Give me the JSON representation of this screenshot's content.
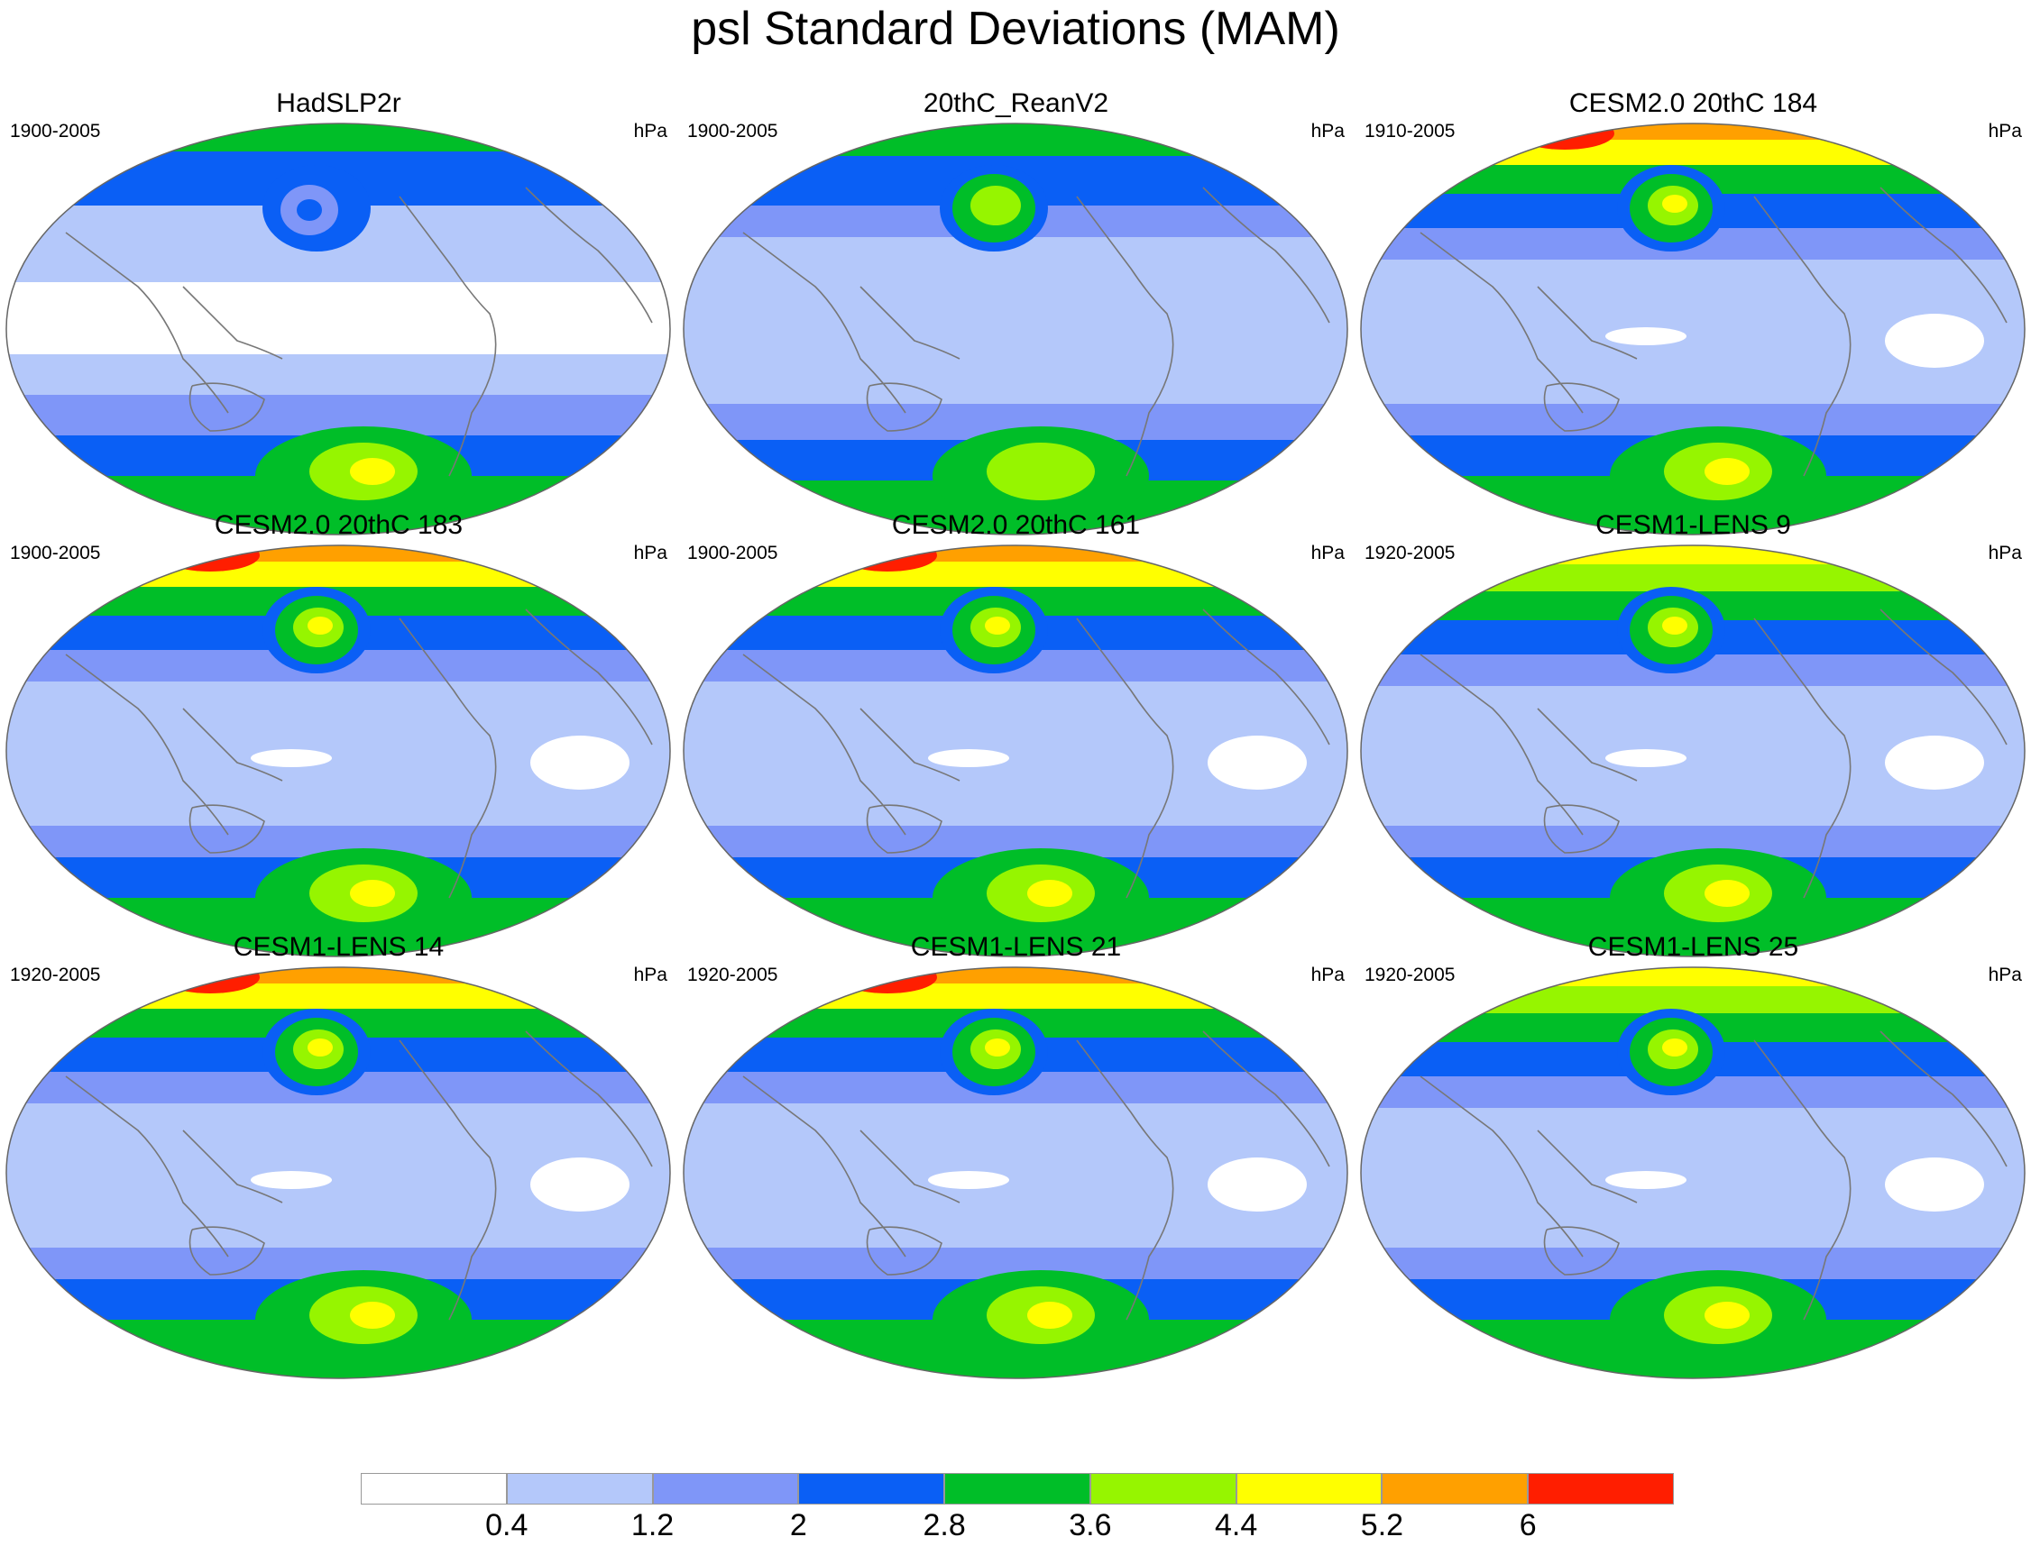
{
  "title": "psl Standard Deviations (MAM)",
  "panels": [
    {
      "name": "HadSLP2r",
      "period": "1900-2005",
      "units": "hPa",
      "style": "obs"
    },
    {
      "name": "20thC_ReanV2",
      "period": "1900-2005",
      "units": "hPa",
      "style": "rean"
    },
    {
      "name": "CESM2.0 20thC 184",
      "period": "1910-2005",
      "units": "hPa",
      "style": "model-strong"
    },
    {
      "name": "CESM2.0 20thC 183",
      "period": "1900-2005",
      "units": "hPa",
      "style": "model-strong"
    },
    {
      "name": "CESM2.0 20thC 161",
      "period": "1900-2005",
      "units": "hPa",
      "style": "model-strong"
    },
    {
      "name": "CESM1-LENS 9",
      "period": "1920-2005",
      "units": "hPa",
      "style": "model"
    },
    {
      "name": "CESM1-LENS 14",
      "period": "1920-2005",
      "units": "hPa",
      "style": "model-strong"
    },
    {
      "name": "CESM1-LENS 21",
      "period": "1920-2005",
      "units": "hPa",
      "style": "model-strong"
    },
    {
      "name": "CESM1-LENS 25",
      "period": "1920-2005",
      "units": "hPa",
      "style": "model"
    }
  ],
  "colorbar": {
    "colors": [
      "#ffffff",
      "#b4c8fa",
      "#7f96f8",
      "#0a5ff5",
      "#00be28",
      "#96f500",
      "#ffff00",
      "#ffa000",
      "#ff1e00"
    ],
    "labels": [
      "0.4",
      "1.2",
      "2",
      "2.8",
      "3.6",
      "4.4",
      "5.2",
      "6"
    ]
  }
}
